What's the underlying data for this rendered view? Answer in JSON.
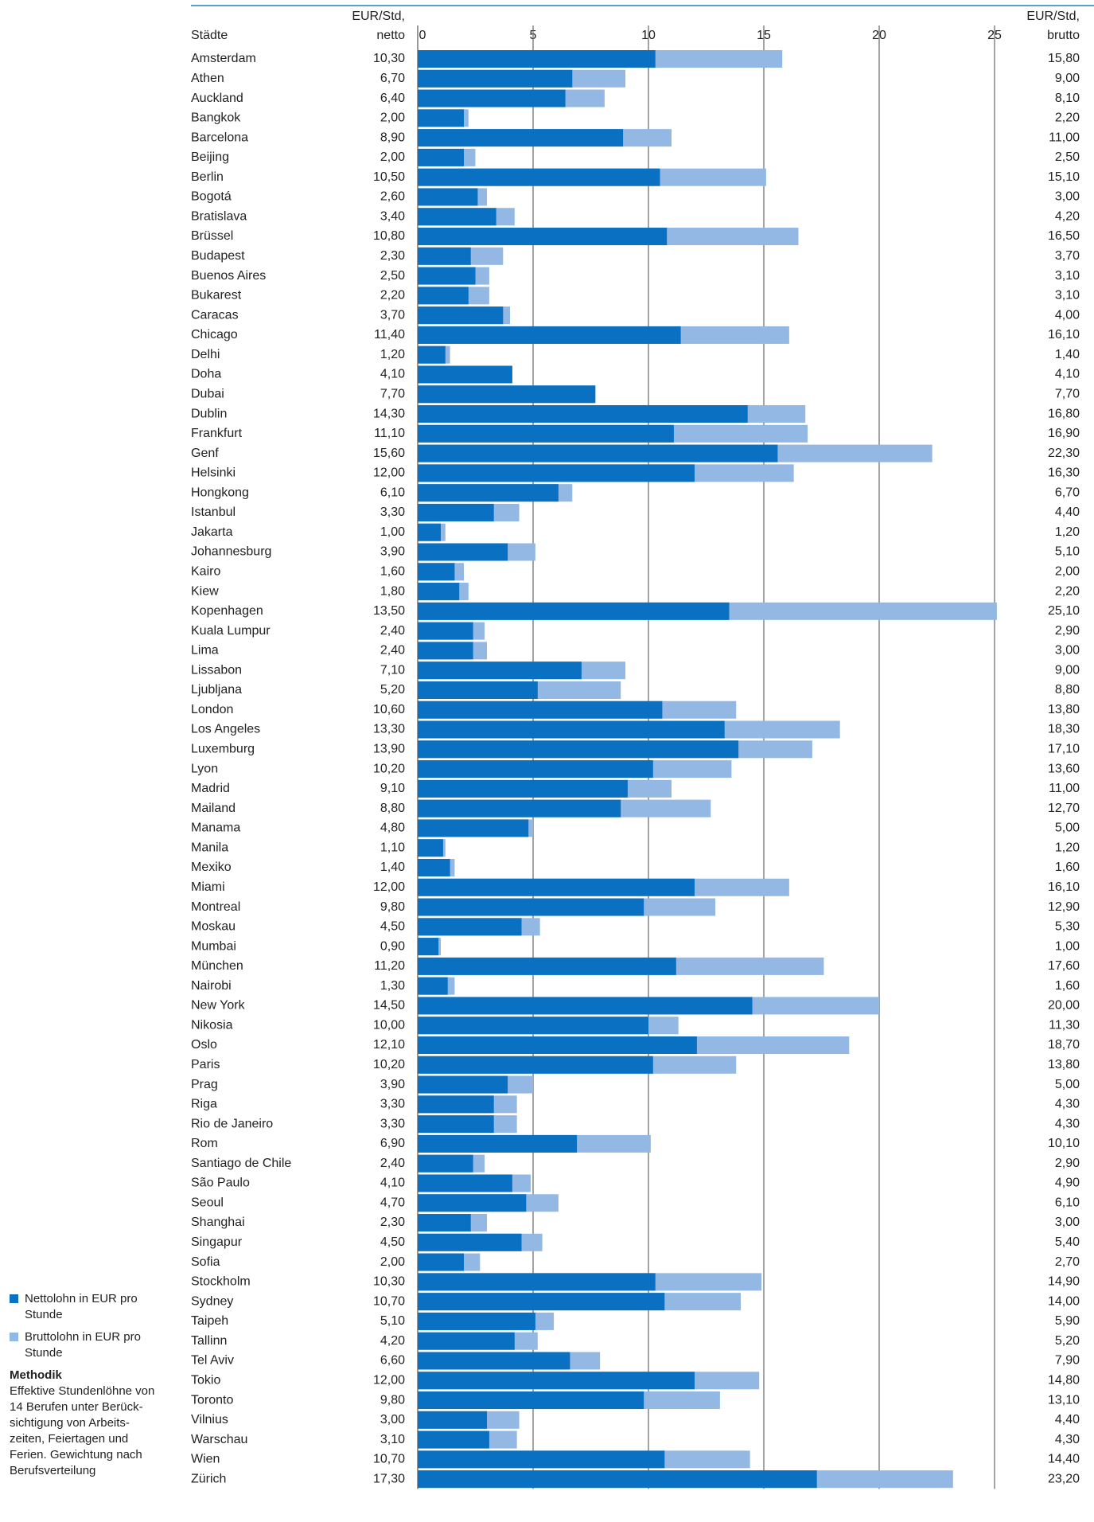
{
  "chart_data": {
    "type": "bar",
    "headers": {
      "category": "Städte",
      "left": [
        "EUR/Std,",
        "netto"
      ],
      "right": [
        "EUR/Std,",
        "brutto"
      ]
    },
    "categories": [
      "Amsterdam",
      "Athen",
      "Auckland",
      "Bangkok",
      "Barcelona",
      "Beijing",
      "Berlin",
      "Bogotá",
      "Bratislava",
      "Brüssel",
      "Budapest",
      "Buenos Aires",
      "Bukarest",
      "Caracas",
      "Chicago",
      "Delhi",
      "Doha",
      "Dubai",
      "Dublin",
      "Frankfurt",
      "Genf",
      "Helsinki",
      "Hongkong",
      "Istanbul",
      "Jakarta",
      "Johannesburg",
      "Kairo",
      "Kiew",
      "Kopenhagen",
      "Kuala Lumpur",
      "Lima",
      "Lissabon",
      "Ljubljana",
      "London",
      "Los Angeles",
      "Luxemburg",
      "Lyon",
      "Madrid",
      "Mailand",
      "Manama",
      "Manila",
      "Mexiko",
      "Miami",
      "Montreal",
      "Moskau",
      "Mumbai",
      "München",
      "Nairobi",
      "New York",
      "Nikosia",
      "Oslo",
      "Paris",
      "Prag",
      "Riga",
      "Rio de Janeiro",
      "Rom",
      "Santiago de Chile",
      "São Paulo",
      "Seoul",
      "Shanghai",
      "Singapur",
      "Sofia",
      "Stockholm",
      "Sydney",
      "Taipeh",
      "Tallinn",
      "Tel Aviv",
      "Tokio",
      "Toronto",
      "Vilnius",
      "Warschau",
      "Wien",
      "Zürich"
    ],
    "series": [
      {
        "name": "Nettolohn in EUR pro Stunde",
        "color": "#0a70c2",
        "values": [
          10.3,
          6.7,
          6.4,
          2.0,
          8.9,
          2.0,
          10.5,
          2.6,
          3.4,
          10.8,
          2.3,
          2.5,
          2.2,
          3.7,
          11.4,
          1.2,
          4.1,
          7.7,
          14.3,
          11.1,
          15.6,
          12.0,
          6.1,
          3.3,
          1.0,
          3.9,
          1.6,
          1.8,
          13.5,
          2.4,
          2.4,
          7.1,
          5.2,
          10.6,
          13.3,
          13.9,
          10.2,
          9.1,
          8.8,
          4.8,
          1.1,
          1.4,
          12.0,
          9.8,
          4.5,
          0.9,
          11.2,
          1.3,
          14.5,
          10.0,
          12.1,
          10.2,
          3.9,
          3.3,
          3.3,
          6.9,
          2.4,
          4.1,
          4.7,
          2.3,
          4.5,
          2.0,
          10.3,
          10.7,
          5.1,
          4.2,
          6.6,
          12.0,
          9.8,
          3.0,
          3.1,
          10.7,
          17.3
        ],
        "value_labels": [
          "10,30",
          "6,70",
          "6,40",
          "2,00",
          "8,90",
          "2,00",
          "10,50",
          "2,60",
          "3,40",
          "10,80",
          "2,30",
          "2,50",
          "2,20",
          "3,70",
          "11,40",
          "1,20",
          "4,10",
          "7,70",
          "14,30",
          "11,10",
          "15,60",
          "12,00",
          "6,10",
          "3,30",
          "1,00",
          "3,90",
          "1,60",
          "1,80",
          "13,50",
          "2,40",
          "2,40",
          "7,10",
          "5,20",
          "10,60",
          "13,30",
          "13,90",
          "10,20",
          "9,10",
          "8,80",
          "4,80",
          "1,10",
          "1,40",
          "12,00",
          "9,80",
          "4,50",
          "0,90",
          "11,20",
          "1,30",
          "14,50",
          "10,00",
          "12,10",
          "10,20",
          "3,90",
          "3,30",
          "3,30",
          "6,90",
          "2,40",
          "4,10",
          "4,70",
          "2,30",
          "4,50",
          "2,00",
          "10,30",
          "10,70",
          "5,10",
          "4,20",
          "6,60",
          "12,00",
          "9,80",
          "3,00",
          "3,10",
          "10,70",
          "17,30"
        ]
      },
      {
        "name": "Bruttolohn in EUR pro Stunde",
        "color": "#93b8e3",
        "values": [
          15.8,
          9.0,
          8.1,
          2.2,
          11.0,
          2.5,
          15.1,
          3.0,
          4.2,
          16.5,
          3.7,
          3.1,
          3.1,
          4.0,
          16.1,
          1.4,
          4.1,
          7.7,
          16.8,
          16.9,
          22.3,
          16.3,
          6.7,
          4.4,
          1.2,
          5.1,
          2.0,
          2.2,
          25.1,
          2.9,
          3.0,
          9.0,
          8.8,
          13.8,
          18.3,
          17.1,
          13.6,
          11.0,
          12.7,
          5.0,
          1.2,
          1.6,
          16.1,
          12.9,
          5.3,
          1.0,
          17.6,
          1.6,
          20.0,
          11.3,
          18.7,
          13.8,
          5.0,
          4.3,
          4.3,
          10.1,
          2.9,
          4.9,
          6.1,
          3.0,
          5.4,
          2.7,
          14.9,
          14.0,
          5.9,
          5.2,
          7.9,
          14.8,
          13.1,
          4.4,
          4.3,
          14.4,
          23.2
        ],
        "value_labels": [
          "15,80",
          "9,00",
          "8,10",
          "2,20",
          "11,00",
          "2,50",
          "15,10",
          "3,00",
          "4,20",
          "16,50",
          "3,70",
          "3,10",
          "3,10",
          "4,00",
          "16,10",
          "1,40",
          "4,10",
          "7,70",
          "16,80",
          "16,90",
          "22,30",
          "16,30",
          "6,70",
          "4,40",
          "1,20",
          "5,10",
          "2,00",
          "2,20",
          "25,10",
          "2,90",
          "3,00",
          "9,00",
          "8,80",
          "13,80",
          "18,30",
          "17,10",
          "13,60",
          "11,00",
          "12,70",
          "5,00",
          "1,20",
          "1,60",
          "16,10",
          "12,90",
          "5,30",
          "1,00",
          "17,60",
          "1,60",
          "20,00",
          "11,30",
          "18,70",
          "13,80",
          "5,00",
          "4,30",
          "4,30",
          "10,10",
          "2,90",
          "4,90",
          "6,10",
          "3,00",
          "5,40",
          "2,70",
          "14,90",
          "14,00",
          "5,90",
          "5,20",
          "7,90",
          "14,80",
          "13,10",
          "4,40",
          "4,30",
          "14,40",
          "23,20"
        ]
      }
    ],
    "xlim": [
      0,
      25
    ],
    "xticks": [
      0,
      5,
      10,
      15,
      20,
      25
    ],
    "grid": true,
    "note": {
      "title": "Methodik",
      "lines": [
        "Effektive Stundenlöhne von",
        "14 Berufen unter Berück-",
        "sichtigung von Arbeits-",
        "zeiten, Feiertagen und",
        "Ferien. Gewichtung nach",
        "Berufsverteilung"
      ]
    }
  }
}
